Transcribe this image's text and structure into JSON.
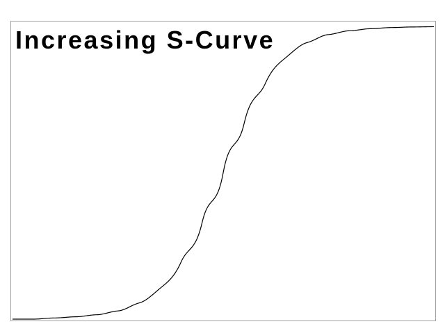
{
  "chart_data": {
    "type": "line",
    "title": "Increasing S-Curve",
    "xlabel": "",
    "ylabel": "",
    "xlim": [
      0,
      1
    ],
    "ylim": [
      0,
      1
    ],
    "grid": false,
    "legend": "none",
    "colors": {
      "line": "#000000",
      "frame": "#a0a0a0",
      "background": "#ffffff"
    },
    "series": [
      {
        "x": [
          0.0,
          0.05,
          0.1,
          0.15,
          0.2,
          0.25,
          0.3,
          0.35,
          0.4,
          0.45,
          0.5,
          0.55,
          0.6,
          0.65,
          0.7,
          0.75,
          0.8,
          0.85,
          0.9,
          0.95,
          1.0
        ],
        "y": [
          0.0,
          0.0,
          0.004,
          0.008,
          0.015,
          0.028,
          0.055,
          0.105,
          0.195,
          0.33,
          0.5,
          0.67,
          0.805,
          0.895,
          0.945,
          0.972,
          0.985,
          0.992,
          0.996,
          0.998,
          0.999
        ]
      }
    ]
  }
}
